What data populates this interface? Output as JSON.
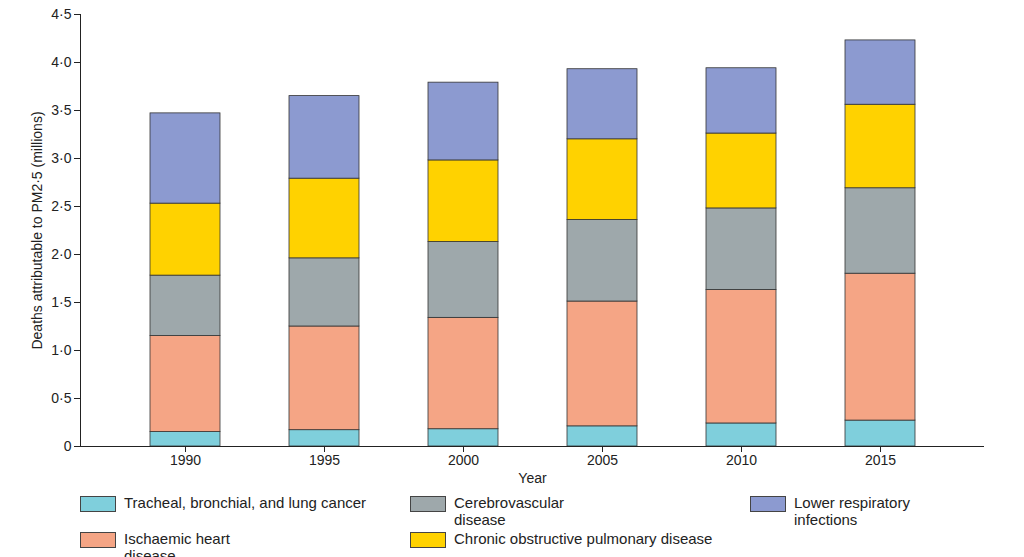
{
  "chart_data": {
    "type": "bar",
    "stacked": true,
    "x_label": "Year",
    "y_label": "Deaths attributable to PM2·5 (millions)",
    "categories": [
      "1990",
      "1995",
      "2000",
      "2005",
      "2010",
      "2015"
    ],
    "series": [
      {
        "name": "Tracheal, bronchial, and lung cancer",
        "color": "#7fcfdc",
        "values": [
          0.15,
          0.17,
          0.18,
          0.21,
          0.24,
          0.27
        ]
      },
      {
        "name": "Ischaemic heart disease",
        "color": "#f5a585",
        "values": [
          1.0,
          1.08,
          1.16,
          1.3,
          1.39,
          1.53
        ]
      },
      {
        "name": "Cerebrovascular disease",
        "color": "#9ea8ab",
        "values": [
          0.63,
          0.71,
          0.79,
          0.85,
          0.85,
          0.89
        ]
      },
      {
        "name": "Chronic obstructive pulmonary disease",
        "color": "#ffd200",
        "values": [
          0.75,
          0.83,
          0.85,
          0.84,
          0.78,
          0.87
        ]
      },
      {
        "name": "Lower respiratory infections",
        "color": "#8c9ad0",
        "values": [
          0.94,
          0.86,
          0.81,
          0.73,
          0.68,
          0.67
        ]
      }
    ],
    "ylim": [
      0,
      4.5
    ],
    "yticks": [
      0,
      {
        "value": 0.5,
        "label": "0·5"
      },
      {
        "value": 1.0,
        "label": "1·0"
      },
      {
        "value": 1.5,
        "label": "1·5"
      },
      {
        "value": 2.0,
        "label": "2·0"
      },
      {
        "value": 2.5,
        "label": "2·5"
      },
      {
        "value": 3.0,
        "label": "3·0"
      },
      {
        "value": 3.5,
        "label": "3·5"
      },
      {
        "value": 4.0,
        "label": "4·0"
      },
      {
        "value": 4.5,
        "label": "4·5"
      }
    ],
    "grid": false,
    "legend": "bottom"
  }
}
